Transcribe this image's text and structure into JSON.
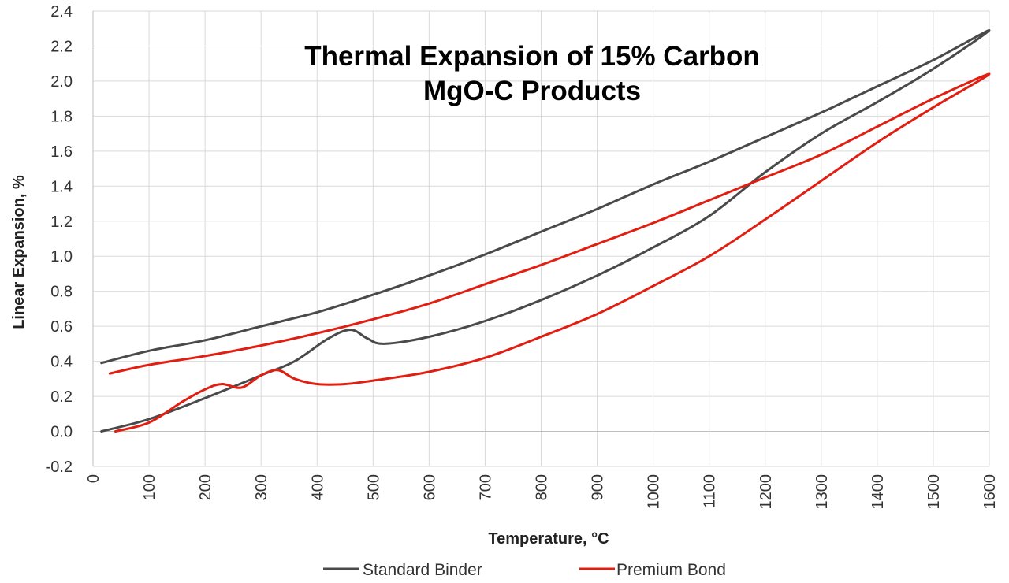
{
  "chart_data": {
    "type": "line",
    "title_lines": [
      "Thermal Expansion of 15% Carbon",
      "MgO-C Products"
    ],
    "xlabel": "Temperature, °C",
    "ylabel": "Linear Expansion, %",
    "xlim": [
      0,
      1600
    ],
    "ylim": [
      -0.2,
      2.4
    ],
    "xticks": [
      0,
      100,
      200,
      300,
      400,
      500,
      600,
      700,
      800,
      900,
      1000,
      1100,
      1200,
      1300,
      1400,
      1500,
      1600
    ],
    "xtick_labels": [
      "0",
      "100",
      "200",
      "300",
      "400",
      "500",
      "600",
      "700",
      "800",
      "900",
      "1000",
      "1100",
      "1200",
      "1300",
      "1400",
      "1500",
      "1600"
    ],
    "yticks": [
      -0.2,
      0.0,
      0.2,
      0.4,
      0.6,
      0.8,
      1.0,
      1.2,
      1.4,
      1.6,
      1.8,
      2.0,
      2.2,
      2.4
    ],
    "ytick_labels": [
      "-0.2",
      "0.0",
      "0.2",
      "0.4",
      "0.6",
      "0.8",
      "1.0",
      "1.2",
      "1.4",
      "1.6",
      "1.8",
      "2.0",
      "2.2",
      "2.4"
    ],
    "grid": true,
    "legend_position": "bottom",
    "series": [
      {
        "name": "Standard Binder",
        "color": "#4a4a4a",
        "points": [
          [
            15,
            0.0
          ],
          [
            100,
            0.07
          ],
          [
            200,
            0.19
          ],
          [
            300,
            0.32
          ],
          [
            360,
            0.4
          ],
          [
            420,
            0.53
          ],
          [
            460,
            0.58
          ],
          [
            490,
            0.53
          ],
          [
            520,
            0.5
          ],
          [
            600,
            0.54
          ],
          [
            700,
            0.63
          ],
          [
            800,
            0.75
          ],
          [
            900,
            0.89
          ],
          [
            1000,
            1.05
          ],
          [
            1100,
            1.23
          ],
          [
            1200,
            1.48
          ],
          [
            1300,
            1.7
          ],
          [
            1400,
            1.88
          ],
          [
            1500,
            2.07
          ],
          [
            1600,
            2.29
          ],
          [
            1500,
            2.12
          ],
          [
            1400,
            1.97
          ],
          [
            1300,
            1.82
          ],
          [
            1200,
            1.68
          ],
          [
            1100,
            1.54
          ],
          [
            1000,
            1.41
          ],
          [
            900,
            1.27
          ],
          [
            800,
            1.14
          ],
          [
            700,
            1.01
          ],
          [
            600,
            0.89
          ],
          [
            500,
            0.78
          ],
          [
            400,
            0.68
          ],
          [
            300,
            0.6
          ],
          [
            200,
            0.52
          ],
          [
            100,
            0.46
          ],
          [
            15,
            0.39
          ]
        ]
      },
      {
        "name": "Premium Bond",
        "color": "#e01f12",
        "points": [
          [
            40,
            0.0
          ],
          [
            100,
            0.05
          ],
          [
            160,
            0.17
          ],
          [
            200,
            0.24
          ],
          [
            230,
            0.27
          ],
          [
            265,
            0.25
          ],
          [
            300,
            0.32
          ],
          [
            330,
            0.35
          ],
          [
            360,
            0.3
          ],
          [
            400,
            0.27
          ],
          [
            450,
            0.27
          ],
          [
            500,
            0.29
          ],
          [
            600,
            0.34
          ],
          [
            700,
            0.42
          ],
          [
            800,
            0.54
          ],
          [
            900,
            0.67
          ],
          [
            1000,
            0.83
          ],
          [
            1100,
            1.0
          ],
          [
            1200,
            1.21
          ],
          [
            1300,
            1.43
          ],
          [
            1400,
            1.65
          ],
          [
            1500,
            1.85
          ],
          [
            1600,
            2.04
          ],
          [
            1500,
            1.9
          ],
          [
            1400,
            1.74
          ],
          [
            1300,
            1.58
          ],
          [
            1200,
            1.45
          ],
          [
            1100,
            1.32
          ],
          [
            1000,
            1.19
          ],
          [
            900,
            1.07
          ],
          [
            800,
            0.95
          ],
          [
            700,
            0.84
          ],
          [
            600,
            0.73
          ],
          [
            500,
            0.64
          ],
          [
            400,
            0.56
          ],
          [
            300,
            0.49
          ],
          [
            200,
            0.43
          ],
          [
            100,
            0.38
          ],
          [
            30,
            0.33
          ]
        ]
      }
    ]
  }
}
